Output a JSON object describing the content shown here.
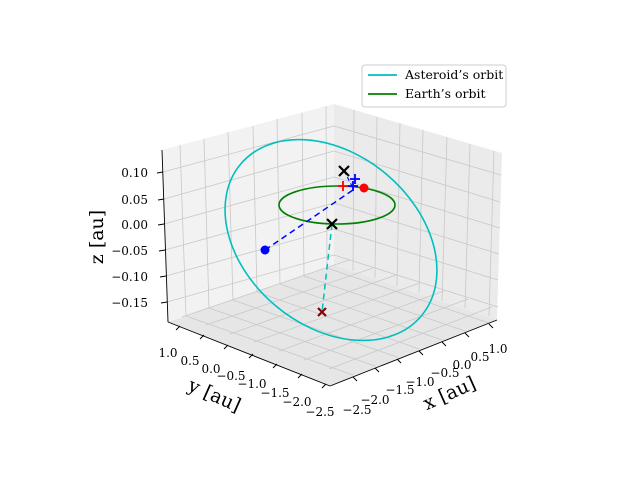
{
  "chart_data": {
    "type": "line3d",
    "title": "",
    "xlabel": "x [au]",
    "ylabel": "y [au]",
    "zlabel": "z [au]",
    "x_ticks": [
      "−2.5",
      "−2.0",
      "−1.5",
      "−1.0",
      "−0.5",
      "0.0",
      "0.5",
      "1.0"
    ],
    "y_ticks": [
      "1.0",
      "0.5",
      "0.0",
      "−0.5",
      "−1.0",
      "−1.5",
      "−2.0",
      "−2.5"
    ],
    "z_ticks": [
      "0.10",
      "0.05",
      "0.00",
      "−0.05",
      "−0.10",
      "−0.15"
    ],
    "grid": true,
    "legend_position": "top-right",
    "series": [
      {
        "name": "Asteroid’s orbit",
        "color": "#00bfbf",
        "shape": "ellipse"
      },
      {
        "name": "Earth’s orbit",
        "color": "#008000",
        "shape": "ellipse"
      }
    ],
    "markers": [
      {
        "label": "asteroid-point",
        "symbol": "dot",
        "color": "#0000ff"
      },
      {
        "label": "earth-point",
        "symbol": "dot",
        "color": "#ff0000"
      },
      {
        "label": "node-top",
        "symbol": "x",
        "color": "#000000"
      },
      {
        "label": "node-middle",
        "symbol": "x",
        "color": "#000000"
      },
      {
        "label": "node-bottom",
        "symbol": "x",
        "color": "#8b0000"
      },
      {
        "label": "sun-plus-red",
        "symbol": "+",
        "color": "#ff0000"
      },
      {
        "label": "sun-plus-blue",
        "symbol": "+",
        "color": "#0000ff"
      }
    ],
    "connectors": [
      {
        "from": "asteroid-point",
        "to": "earth-point",
        "style": "dashed",
        "color": "#0000ff"
      },
      {
        "from": "node-middle",
        "to": "node-bottom",
        "style": "dashed",
        "color": "#00bfbf"
      }
    ]
  }
}
